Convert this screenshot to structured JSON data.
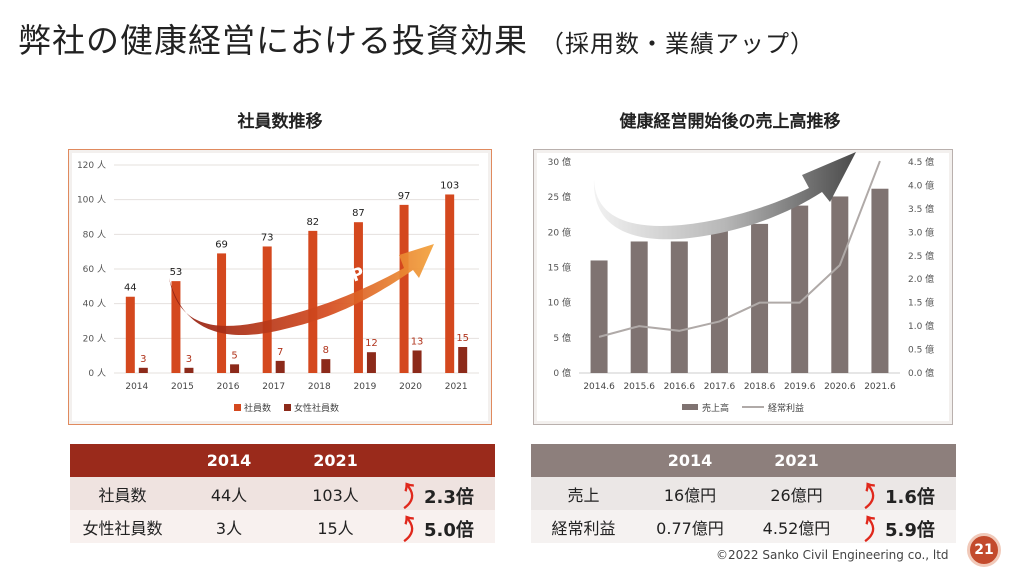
{
  "title": "弊社の健康経営における投資効果",
  "subtitle": "（採用数・業績アップ）",
  "chart_data": [
    {
      "type": "bar",
      "title": "社員数推移",
      "categories": [
        "2014",
        "2015",
        "2016",
        "2017",
        "2018",
        "2019",
        "2020",
        "2021"
      ],
      "series": [
        {
          "name": "社員数",
          "values": [
            44,
            53,
            69,
            73,
            82,
            87,
            97,
            103
          ],
          "color": "#d4481e"
        },
        {
          "name": "女性社員数",
          "values": [
            3,
            3,
            5,
            7,
            8,
            12,
            13,
            15
          ],
          "color": "#8c2a1a"
        }
      ],
      "ylim": [
        0,
        120
      ],
      "yticks": [
        "0 人",
        "20 人",
        "40 人",
        "60 人",
        "80 人",
        "100 人",
        "120 人"
      ],
      "legend": "bottom",
      "annotation": "UP"
    },
    {
      "type": "bar+line",
      "title": "健康経営開始後の売上高推移",
      "categories": [
        "2014.6",
        "2015.6",
        "2016.6",
        "2017.6",
        "2018.6",
        "2019.6",
        "2020.6",
        "2021.6"
      ],
      "series": [
        {
          "name": "売上高",
          "type": "bar",
          "axis": "left",
          "values": [
            16,
            18.7,
            18.7,
            21.4,
            21.2,
            23.8,
            25.1,
            26.2
          ],
          "color": "#7f7371"
        },
        {
          "name": "経常利益",
          "type": "line",
          "axis": "right",
          "values": [
            0.77,
            1.0,
            0.9,
            1.1,
            1.5,
            1.5,
            2.3,
            4.52
          ],
          "color": "#b0aaa8"
        }
      ],
      "ylim": [
        0,
        30
      ],
      "y2lim": [
        0,
        4.5
      ],
      "yticks": [
        "0 億",
        "5 億",
        "10 億",
        "15 億",
        "20 億",
        "25 億",
        "30 億"
      ],
      "y2ticks": [
        "0.0 億",
        "0.5 億",
        "1.0 億",
        "1.5 億",
        "2.0 億",
        "2.5 億",
        "3.0 億",
        "3.5 億",
        "4.0 億",
        "4.5 億"
      ],
      "legend": "bottom",
      "annotation": "UP"
    }
  ],
  "table_left": {
    "header": [
      "",
      "2014",
      "2021",
      ""
    ],
    "rows": [
      {
        "label": "社員数",
        "v2014": "44人",
        "v2021": "103人",
        "rate": "2.3倍"
      },
      {
        "label": "女性社員数",
        "v2014": "3人",
        "v2021": "15人",
        "rate": "5.0倍"
      }
    ]
  },
  "table_right": {
    "header": [
      "",
      "2014",
      "2021",
      ""
    ],
    "rows": [
      {
        "label": "売上",
        "v2014": "16億円",
        "v2021": "26億円",
        "rate": "1.6倍"
      },
      {
        "label": "経常利益",
        "v2014": "0.77億円",
        "v2021": "4.52億円",
        "rate": "5.9倍"
      }
    ]
  },
  "arrow_glyph": "⤴",
  "copyright": "©2022 Sanko Civil Engineering co., ltd",
  "page_number": "21"
}
